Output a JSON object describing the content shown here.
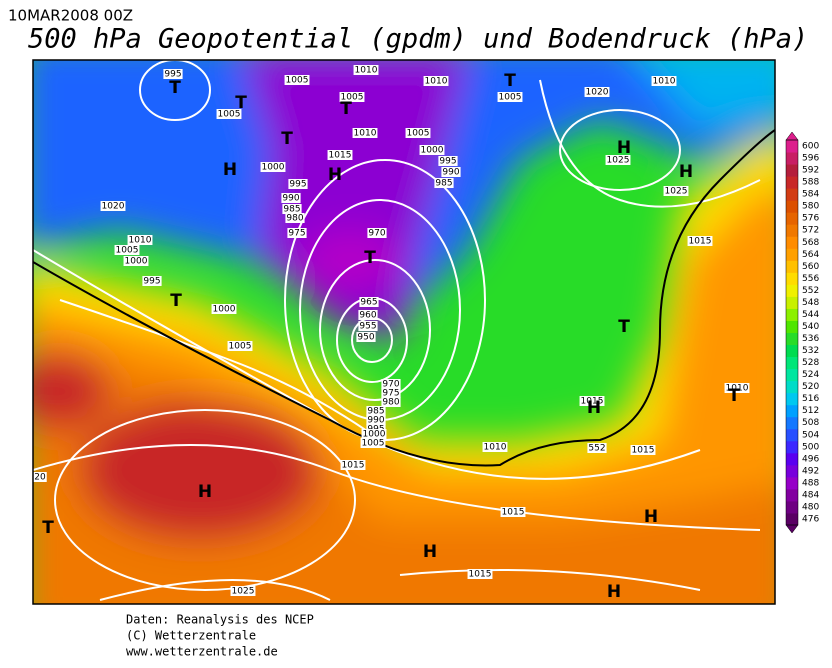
{
  "header": {
    "date": "10MAR2008 00Z",
    "title": "500 hPa Geopotential (gpdm) und Bodendruck (hPa)"
  },
  "colorbar": {
    "levels": [
      476,
      480,
      484,
      488,
      492,
      496,
      500,
      504,
      508,
      512,
      516,
      520,
      524,
      528,
      532,
      536,
      540,
      544,
      548,
      552,
      556,
      560,
      564,
      568,
      572,
      576,
      580,
      584,
      588,
      592,
      596,
      600
    ],
    "colors": [
      "#5a0064",
      "#6e0082",
      "#8200a0",
      "#9600c8",
      "#7800dc",
      "#5a00f0",
      "#3c28ff",
      "#2850ff",
      "#1478ff",
      "#00a0ff",
      "#00c8f0",
      "#00dcc8",
      "#00e6a0",
      "#00e678",
      "#00dc50",
      "#28dc28",
      "#50e600",
      "#8cf000",
      "#c8f000",
      "#f0f000",
      "#ffdc00",
      "#ffc000",
      "#ffa000",
      "#ff8c00",
      "#f07800",
      "#e66400",
      "#dc5000",
      "#d23c14",
      "#c82828",
      "#b41e3c",
      "#c81e64",
      "#dc1e8c"
    ]
  },
  "map": {
    "pressure_labels": [
      "995",
      "1005",
      "1010",
      "1010",
      "1005",
      "1020",
      "1010",
      "1005",
      "1005",
      "1010",
      "1015",
      "1005",
      "1000",
      "995",
      "990",
      "985",
      "995",
      "990",
      "985",
      "980",
      "975",
      "970",
      "1000",
      "1020",
      "1010",
      "1005",
      "1000",
      "995",
      "1000",
      "1005",
      "965",
      "960",
      "955",
      "950",
      "970",
      "975",
      "980",
      "985",
      "990",
      "995",
      "1000",
      "1005",
      "1015",
      "1010",
      "1015",
      "1015",
      "1015",
      "1015",
      "1025",
      "1025",
      "1025",
      "1015",
      "1010",
      "20",
      "552"
    ],
    "pressure_systems": [
      "T",
      "T",
      "T",
      "T",
      "T",
      "H",
      "H",
      "T",
      "T",
      "H",
      "H",
      "T",
      "H",
      "T",
      "H",
      "T",
      "H",
      "H",
      "H"
    ]
  },
  "footer": {
    "lines": [
      "Daten: Reanalysis des NCEP",
      "(C) Wetterzentrale",
      "www.wetterzentrale.de"
    ]
  }
}
